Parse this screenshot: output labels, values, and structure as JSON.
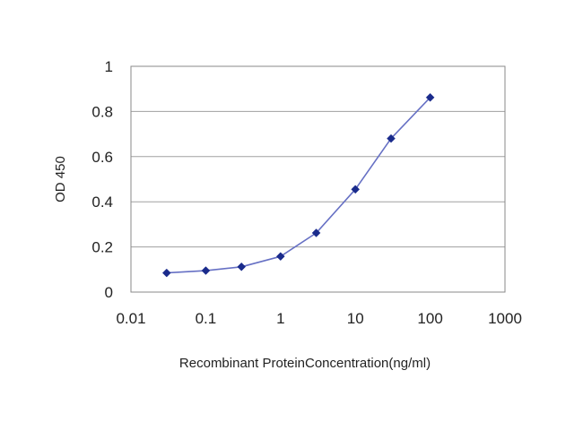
{
  "chart_data": {
    "type": "line",
    "title": "",
    "xlabel": "Recombinant ProteinConcentration(ng/ml)",
    "ylabel": "OD 450",
    "x_scale": "log",
    "xlim": [
      0.01,
      1000
    ],
    "ylim": [
      0,
      1
    ],
    "x_ticks": [
      0.01,
      0.1,
      1,
      10,
      100,
      1000
    ],
    "x_tick_labels": [
      "0.01",
      "0.1",
      "1",
      "10",
      "100",
      "1000"
    ],
    "y_ticks": [
      0,
      0.2,
      0.4,
      0.6,
      0.8,
      1
    ],
    "y_tick_labels": [
      "0",
      "0.2",
      "0.4",
      "0.6",
      "0.8",
      "1"
    ],
    "grid": "horizontal",
    "series": [
      {
        "x": [
          0.03,
          0.1,
          0.3,
          1,
          3,
          10,
          30,
          100
        ],
        "y": [
          0.085,
          0.095,
          0.112,
          0.158,
          0.262,
          0.455,
          0.68,
          0.862
        ],
        "color": "#1a2b8c",
        "line_color": "#6670c4",
        "marker": "diamond"
      }
    ],
    "colors": {
      "plot_border": "#8a8a8a",
      "gridline": "#a0a0a0"
    }
  }
}
